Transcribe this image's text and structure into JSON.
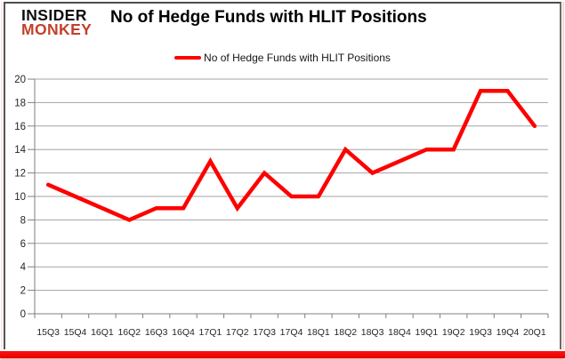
{
  "logo": {
    "line1": "INSIDER",
    "line2": "MONKEY"
  },
  "title": "No of Hedge Funds with HLIT Positions",
  "legend": {
    "label": "No of Hedge Funds with HLIT Positions"
  },
  "colors": {
    "line_red": "#ff0000",
    "logo_red": "#c2402a",
    "bottom_bar_red": "#ee0000",
    "gridline_gray": "#a3a3a3",
    "axis_gray": "#7f7f7f",
    "label_dark": "#262626"
  },
  "chart_data": {
    "type": "line",
    "title": "No of Hedge Funds with HLIT Positions",
    "categories": [
      "15Q3",
      "15Q4",
      "16Q1",
      "16Q2",
      "16Q3",
      "16Q4",
      "17Q1",
      "17Q2",
      "17Q3",
      "17Q4",
      "18Q1",
      "18Q2",
      "18Q3",
      "18Q4",
      "19Q1",
      "19Q2",
      "19Q3",
      "19Q4",
      "20Q1"
    ],
    "series": [
      {
        "name": "No of Hedge Funds with HLIT Positions",
        "color": "#ff0000",
        "values": [
          11,
          10,
          9,
          8,
          9,
          9,
          13,
          9,
          12,
          10,
          10,
          14,
          12,
          13,
          14,
          14,
          19,
          19,
          16
        ]
      }
    ],
    "xlabel": "",
    "ylabel": "",
    "ylim": [
      0,
      20
    ],
    "ytick_step": 2,
    "grid": "horizontal-only",
    "legend_position": "top-center"
  }
}
